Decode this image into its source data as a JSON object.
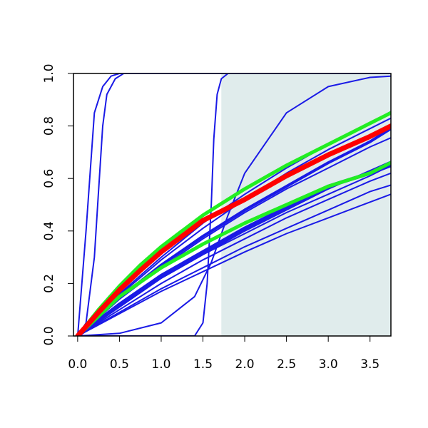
{
  "chart_data": {
    "type": "line",
    "title": "",
    "xlabel": "",
    "ylabel": "",
    "xlim": [
      -0.05,
      3.75
    ],
    "ylim": [
      0,
      1
    ],
    "x_ticks": [
      "0.0",
      "0.5",
      "1.0",
      "1.5",
      "2.0",
      "2.5",
      "3.0",
      "3.5"
    ],
    "y_ticks": [
      "0.0",
      "0.2",
      "0.4",
      "0.6",
      "0.8",
      "1.0"
    ],
    "grid": false,
    "legend": "none",
    "shaded_region": {
      "x_from": 1.72,
      "x_to": 3.75,
      "color": "#e0ecec"
    },
    "colors": {
      "blue": "#1a1ae6",
      "red": "#ff0000",
      "green": "#22ee22"
    },
    "series": [
      {
        "color": "blue",
        "width": 2,
        "x": [
          0,
          0.1,
          0.2,
          0.3,
          0.4,
          0.5,
          0.7,
          1.0,
          3.75
        ],
        "y": [
          0,
          0.4,
          0.85,
          0.95,
          0.99,
          1.0,
          1.0,
          1.0,
          1.0
        ]
      },
      {
        "color": "blue",
        "width": 2,
        "x": [
          0,
          0.1,
          0.2,
          0.25,
          0.3,
          0.35,
          0.45,
          0.55,
          0.7,
          3.75
        ],
        "y": [
          0,
          0.05,
          0.3,
          0.55,
          0.8,
          0.92,
          0.98,
          1.0,
          1.0,
          1.0
        ]
      },
      {
        "color": "blue",
        "width": 2,
        "x": [
          0,
          1.0,
          1.4,
          1.5,
          1.55,
          1.6,
          1.63,
          1.67,
          1.72,
          1.8,
          2.0,
          3.75
        ],
        "y": [
          0,
          0,
          0.0,
          0.05,
          0.2,
          0.5,
          0.75,
          0.92,
          0.98,
          1.0,
          1.0,
          1.0
        ]
      },
      {
        "color": "blue",
        "width": 2,
        "x": [
          0,
          0.5,
          1.0,
          1.4,
          1.6,
          1.8,
          2.0,
          2.5,
          3.0,
          3.5,
          3.75
        ],
        "y": [
          0,
          0.01,
          0.05,
          0.15,
          0.28,
          0.46,
          0.62,
          0.85,
          0.95,
          0.985,
          0.99
        ]
      },
      {
        "color": "blue",
        "width": 2,
        "x": [
          0,
          0.5,
          1.0,
          1.5,
          2.0,
          2.5,
          3.0,
          3.5,
          3.75
        ],
        "y": [
          0,
          0.16,
          0.3,
          0.43,
          0.54,
          0.64,
          0.73,
          0.81,
          0.855
        ]
      },
      {
        "color": "blue",
        "width": 2,
        "x": [
          0,
          0.5,
          1.0,
          1.5,
          2.0,
          2.5,
          3.0,
          3.5,
          3.75
        ],
        "y": [
          0,
          0.155,
          0.29,
          0.41,
          0.52,
          0.62,
          0.71,
          0.79,
          0.83
        ]
      },
      {
        "color": "blue",
        "width": 2,
        "x": [
          0,
          0.5,
          1.0,
          1.5,
          2.0,
          2.5,
          3.0,
          3.5,
          3.75
        ],
        "y": [
          0,
          0.14,
          0.26,
          0.37,
          0.47,
          0.56,
          0.64,
          0.72,
          0.755
        ]
      },
      {
        "color": "blue",
        "width": 2,
        "x": [
          0,
          0.5,
          1.0,
          1.5,
          2.0,
          2.5,
          3.0,
          3.5,
          3.75
        ],
        "y": [
          0,
          0.11,
          0.22,
          0.31,
          0.4,
          0.48,
          0.56,
          0.63,
          0.665
        ]
      },
      {
        "color": "blue",
        "width": 2,
        "x": [
          0,
          0.5,
          1.0,
          1.5,
          2.0,
          2.5,
          3.0,
          3.5,
          3.75
        ],
        "y": [
          0,
          0.1,
          0.2,
          0.29,
          0.37,
          0.45,
          0.52,
          0.59,
          0.62
        ]
      },
      {
        "color": "blue",
        "width": 2,
        "x": [
          0,
          0.5,
          1.0,
          1.5,
          2.0,
          2.5,
          3.0,
          3.5,
          3.75
        ],
        "y": [
          0,
          0.09,
          0.18,
          0.26,
          0.34,
          0.41,
          0.48,
          0.55,
          0.575
        ]
      },
      {
        "color": "blue",
        "width": 2,
        "x": [
          0,
          0.5,
          1.0,
          1.5,
          2.0,
          2.5,
          3.0,
          3.5,
          3.75
        ],
        "y": [
          0,
          0.085,
          0.17,
          0.245,
          0.32,
          0.39,
          0.45,
          0.51,
          0.54
        ]
      },
      {
        "color": "blue",
        "width": 2,
        "x": [
          0,
          0.5,
          1.0,
          1.5,
          2.0,
          2.5,
          3.0,
          3.5,
          3.75
        ],
        "y": [
          0,
          0.12,
          0.22,
          0.31,
          0.39,
          0.47,
          0.54,
          0.61,
          0.65
        ]
      },
      {
        "color": "blue",
        "width": 5,
        "x": [
          0,
          0.5,
          1.0,
          1.5,
          2.0,
          2.5,
          3.0,
          3.5,
          3.75
        ],
        "y": [
          0,
          0.12,
          0.23,
          0.32,
          0.41,
          0.49,
          0.57,
          0.62,
          0.65
        ]
      },
      {
        "color": "blue",
        "width": 4,
        "x": [
          0,
          0.5,
          1.0,
          1.5,
          2.0,
          2.5,
          3.0,
          3.5,
          3.75
        ],
        "y": [
          0,
          0.145,
          0.27,
          0.38,
          0.48,
          0.57,
          0.66,
          0.74,
          0.79
        ]
      },
      {
        "color": "green",
        "width": 5,
        "x": [
          0,
          0.25,
          0.5,
          0.75,
          1.0,
          1.25,
          1.5,
          1.75,
          2.0,
          2.5,
          3.0,
          3.5,
          3.75
        ],
        "y": [
          0,
          0.1,
          0.19,
          0.27,
          0.34,
          0.4,
          0.46,
          0.51,
          0.56,
          0.65,
          0.73,
          0.81,
          0.85
        ]
      },
      {
        "color": "green",
        "width": 5,
        "x": [
          0,
          0.5,
          1.0,
          1.5,
          2.0,
          2.5,
          3.0,
          3.5,
          3.75
        ],
        "y": [
          0,
          0.15,
          0.26,
          0.35,
          0.43,
          0.5,
          0.57,
          0.62,
          0.66
        ]
      },
      {
        "color": "red",
        "width": 7,
        "x": [
          0,
          0.25,
          0.5,
          0.75,
          1.0,
          1.25,
          1.5,
          1.75,
          2.0,
          2.5,
          3.0,
          3.5,
          3.75
        ],
        "y": [
          0,
          0.09,
          0.175,
          0.25,
          0.32,
          0.38,
          0.44,
          0.48,
          0.52,
          0.61,
          0.69,
          0.76,
          0.8
        ]
      }
    ]
  }
}
